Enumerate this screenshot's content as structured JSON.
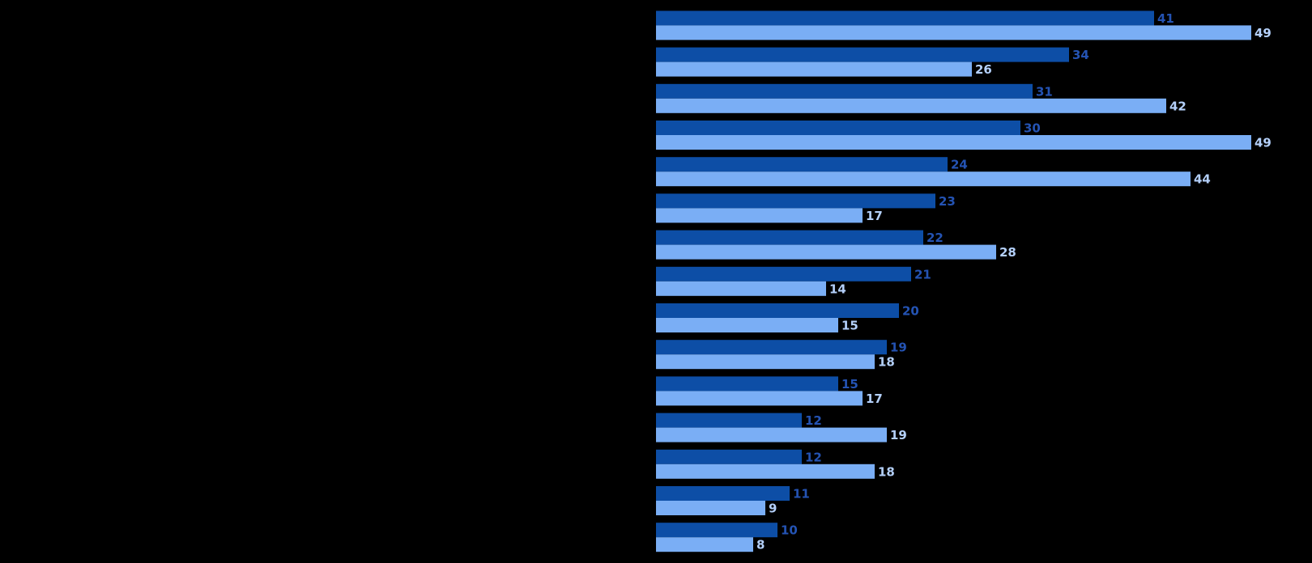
{
  "chart_data": {
    "type": "bar",
    "orientation": "horizontal",
    "categories": [
      null,
      null,
      null,
      null,
      null,
      null,
      null,
      null,
      null,
      null,
      null,
      null,
      null,
      null,
      null
    ],
    "series": [
      {
        "color": "#0d4ea6",
        "label_color": "#2453b3",
        "values": [
          41,
          34,
          31,
          30,
          24,
          23,
          22,
          21,
          20,
          19,
          15,
          12,
          12,
          11,
          10
        ]
      },
      {
        "color": "#7aaef5",
        "label_color": "#b4d0fa",
        "values": [
          49,
          26,
          42,
          49,
          44,
          17,
          28,
          14,
          15,
          18,
          17,
          19,
          18,
          9,
          8
        ]
      }
    ],
    "background": "#000000"
  }
}
